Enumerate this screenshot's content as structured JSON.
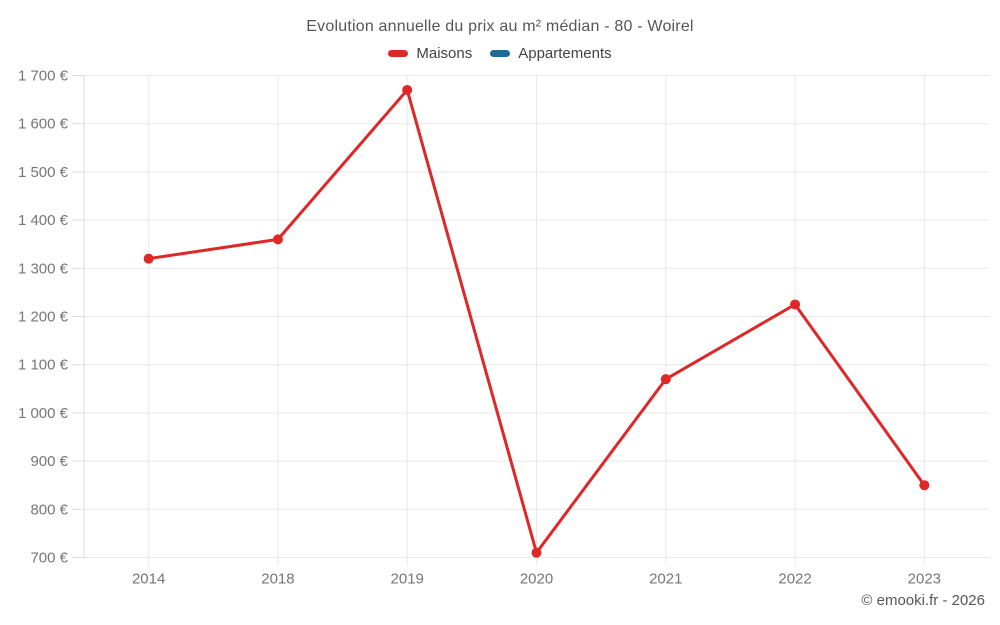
{
  "chart_data": {
    "type": "line",
    "title": "Evolution annuelle du prix au m² médian - 80 - Woirel",
    "categories": [
      "2014",
      "2018",
      "2019",
      "2020",
      "2021",
      "2022",
      "2023"
    ],
    "series": [
      {
        "name": "Maisons",
        "color": "#df2727",
        "values": [
          1320,
          1360,
          1670,
          710,
          1070,
          1225,
          850
        ]
      },
      {
        "name": "Appartements",
        "color": "#1b6d99",
        "values": []
      }
    ],
    "xlabel": "",
    "ylabel": "",
    "ylim": [
      700,
      1700
    ],
    "ytick_step": 100,
    "yticks": [
      {
        "value": 700,
        "label": "700 €"
      },
      {
        "value": 800,
        "label": "800 €"
      },
      {
        "value": 900,
        "label": "900 €"
      },
      {
        "value": 1000,
        "label": "1 000 €"
      },
      {
        "value": 1100,
        "label": "1 100 €"
      },
      {
        "value": 1200,
        "label": "1 200 €"
      },
      {
        "value": 1300,
        "label": "1 300 €"
      },
      {
        "value": 1400,
        "label": "1 400 €"
      },
      {
        "value": 1500,
        "label": "1 500 €"
      },
      {
        "value": 1600,
        "label": "1 600 €"
      },
      {
        "value": 1700,
        "label": "1 700 €"
      }
    ],
    "grid": true,
    "legend_position": "top",
    "style": {
      "grid_color": "#e9e9e9",
      "axis_color": "#dadada",
      "tick_label_color": "#767676"
    }
  },
  "footer": {
    "copyright": "© emooki.fr - 2026"
  }
}
